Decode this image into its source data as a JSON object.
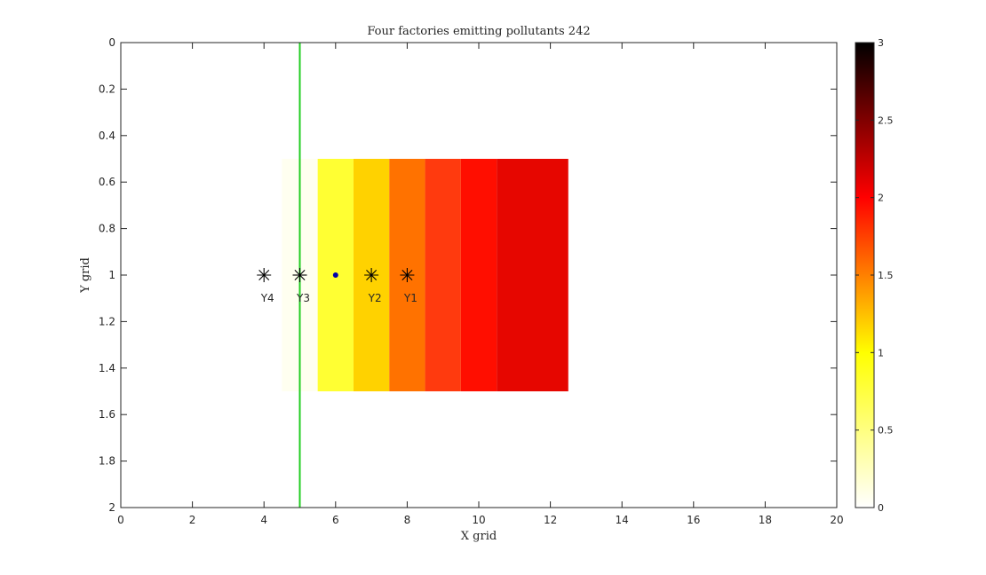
{
  "chart_data": {
    "type": "heatmap",
    "title": "Four factories emitting pollutants 242",
    "xlabel": "X grid",
    "ylabel": "Y grid",
    "xlim": [
      0,
      20
    ],
    "ylim": [
      0,
      2
    ],
    "y_reversed": true,
    "x_ticks": [
      0,
      2,
      4,
      6,
      8,
      10,
      12,
      14,
      16,
      18,
      20
    ],
    "y_ticks": [
      0,
      0.2,
      0.4,
      0.6,
      0.8,
      1,
      1.2,
      1.4,
      1.6,
      1.8,
      2
    ],
    "cells": [
      {
        "x0": 4.5,
        "x1": 5.5,
        "y0": 0.5,
        "y1": 1.5,
        "value": 0.03,
        "color": "#FFFFF0"
      },
      {
        "x0": 5.5,
        "x1": 6.5,
        "y0": 0.5,
        "y1": 1.5,
        "value": 0.6,
        "color": "#FFFF33"
      },
      {
        "x0": 6.5,
        "x1": 7.5,
        "y0": 0.5,
        "y1": 1.5,
        "value": 1.0,
        "color": "#FFD200"
      },
      {
        "x0": 7.5,
        "x1": 8.5,
        "y0": 0.5,
        "y1": 1.5,
        "value": 1.4,
        "color": "#FF7200"
      },
      {
        "x0": 8.5,
        "x1": 9.5,
        "y0": 0.5,
        "y1": 1.5,
        "value": 1.75,
        "color": "#FF3A0E"
      },
      {
        "x0": 9.5,
        "x1": 10.5,
        "y0": 0.5,
        "y1": 1.5,
        "value": 1.95,
        "color": "#FF0E00"
      },
      {
        "x0": 10.5,
        "x1": 12.5,
        "y0": 0.5,
        "y1": 1.5,
        "value": 2.1,
        "color": "#E60600"
      }
    ],
    "vertical_line": {
      "x": 5,
      "color": "#22CC22"
    },
    "factories": [
      {
        "label": "Y1",
        "x": 8,
        "y": 1
      },
      {
        "label": "Y2",
        "x": 7,
        "y": 1
      },
      {
        "label": "Y3",
        "x": 5,
        "y": 1
      },
      {
        "label": "Y4",
        "x": 4,
        "y": 1
      }
    ],
    "point": {
      "x": 6,
      "y": 1,
      "color": "#0000AA"
    },
    "colorbar": {
      "min": 0,
      "max": 3,
      "ticks": [
        0,
        0.5,
        1,
        1.5,
        2,
        2.5,
        3
      ],
      "colormap": "hot-reversed"
    },
    "grid": false
  }
}
